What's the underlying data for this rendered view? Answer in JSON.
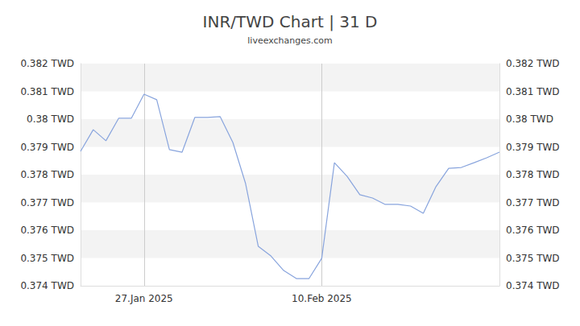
{
  "chart_data": {
    "type": "line",
    "title": "INR/TWD Chart | 31 D",
    "subtitle": "liveexchanges.com",
    "categories": [
      null,
      null,
      null,
      null,
      null,
      "27.Jan 2025",
      null,
      null,
      null,
      null,
      null,
      null,
      null,
      null,
      null,
      null,
      null,
      null,
      null,
      "10.Feb 2025",
      null,
      null,
      null,
      null,
      null,
      null,
      null,
      null,
      null,
      null,
      null,
      null,
      null,
      null
    ],
    "values": [
      0.37884,
      0.37962,
      0.37922,
      0.38003,
      0.38003,
      0.3809,
      0.3807,
      0.3789,
      0.37881,
      0.38006,
      0.38006,
      0.38009,
      0.37916,
      0.37768,
      0.37542,
      0.37507,
      0.37455,
      0.37426,
      0.37426,
      0.37499,
      0.37843,
      0.37794,
      0.37728,
      0.37716,
      0.37693,
      0.37693,
      0.37687,
      0.37661,
      0.37757,
      0.37823,
      0.37826,
      0.37843,
      0.37861,
      0.37881
    ],
    "color": "#88a4dd",
    "marker": "none",
    "ylim": [
      0.374,
      0.382
    ],
    "yticks": [
      {
        "value": 0.374,
        "label": "0.374 TWD"
      },
      {
        "value": 0.375,
        "label": "0.375 TWD"
      },
      {
        "value": 0.376,
        "label": "0.376 TWD"
      },
      {
        "value": 0.377,
        "label": "0.377 TWD"
      },
      {
        "value": 0.378,
        "label": "0.378 TWD"
      },
      {
        "value": 0.379,
        "label": "0.379 TWD"
      },
      {
        "value": 0.38,
        "label": "0.38 TWD"
      },
      {
        "value": 0.381,
        "label": "0.381 TWD"
      },
      {
        "value": 0.382,
        "label": "0.382 TWD"
      }
    ],
    "y2lim": [
      0.374,
      0.382
    ],
    "y2ticks": [
      {
        "value": 0.374,
        "label": "0.374 TWD"
      },
      {
        "value": 0.375,
        "label": "0.375 TWD"
      },
      {
        "value": 0.376,
        "label": "0.376 TWD"
      },
      {
        "value": 0.377,
        "label": "0.377 TWD"
      },
      {
        "value": 0.378,
        "label": "0.378 TWD"
      },
      {
        "value": 0.379,
        "label": "0.379 TWD"
      },
      {
        "value": 0.38,
        "label": "0.38 TWD"
      },
      {
        "value": 0.381,
        "label": "0.381 TWD"
      },
      {
        "value": 0.382,
        "label": "0.382 TWD"
      }
    ],
    "grid": true
  }
}
